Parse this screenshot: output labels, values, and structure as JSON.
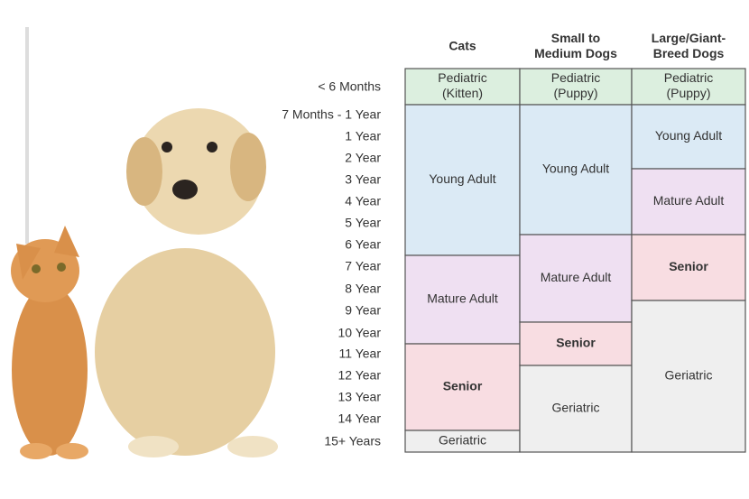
{
  "columns": [
    {
      "header": [
        "Cats"
      ],
      "cells": [
        {
          "label": [
            "Pediatric",
            "(Kitten)"
          ],
          "color": "#dcefdf",
          "bold": false
        },
        {
          "label": [
            "Young Adult"
          ],
          "color": "#dbeaf5",
          "bold": false
        },
        {
          "label": [
            "Mature Adult"
          ],
          "color": "#efe0f2",
          "bold": false
        },
        {
          "label": [
            "Senior"
          ],
          "color": "#f8dde2",
          "bold": true
        },
        {
          "label": [
            "Geriatric"
          ],
          "color": "#efefef",
          "bold": false
        }
      ]
    },
    {
      "header": [
        "Small to",
        "Medium Dogs"
      ],
      "cells": [
        {
          "label": [
            "Pediatric",
            "(Puppy)"
          ],
          "color": "#dcefdf",
          "bold": false
        },
        {
          "label": [
            "Young Adult"
          ],
          "color": "#dbeaf5",
          "bold": false
        },
        {
          "label": [
            "Mature Adult"
          ],
          "color": "#efe0f2",
          "bold": false
        },
        {
          "label": [
            "Senior"
          ],
          "color": "#f8dde2",
          "bold": true
        },
        {
          "label": [
            "Geriatric"
          ],
          "color": "#efefef",
          "bold": false
        }
      ]
    },
    {
      "header": [
        "Large/Giant-",
        "Breed Dogs"
      ],
      "cells": [
        {
          "label": [
            "Pediatric",
            "(Puppy)"
          ],
          "color": "#dcefdf",
          "bold": false
        },
        {
          "label": [
            "Young Adult"
          ],
          "color": "#dbeaf5",
          "bold": false
        },
        {
          "label": [
            "Mature Adult"
          ],
          "color": "#efe0f2",
          "bold": false
        },
        {
          "label": [
            "Senior"
          ],
          "color": "#f8dde2",
          "bold": true
        },
        {
          "label": [
            "Geriatric"
          ],
          "color": "#efefef",
          "bold": false
        }
      ]
    }
  ],
  "ages": [
    "< 6 Months",
    "7 Months - 1 Year",
    "1 Year",
    "2 Year",
    "3 Year",
    "4 Year",
    "5 Year",
    "6 Year",
    "7 Year",
    "8 Year",
    "9 Year",
    "10 Year",
    "11 Year",
    "12 Year",
    "13 Year",
    "14 Year",
    "15+ Years"
  ]
}
